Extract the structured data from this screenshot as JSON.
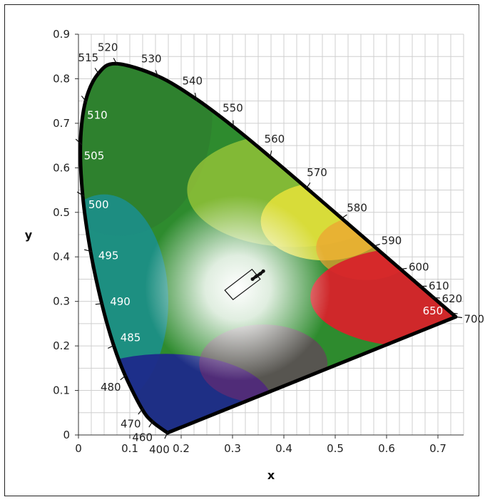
{
  "chart_data": {
    "type": "scatter",
    "xlabel": "x",
    "ylabel": "y",
    "xlim": [
      0,
      0.75
    ],
    "ylim": [
      0,
      0.9
    ],
    "x_ticks": [
      "0",
      "0.1",
      "0.2",
      "0.3",
      "0.4",
      "0.5",
      "0.6",
      "0.7"
    ],
    "y_ticks": [
      "0",
      "0.1",
      "0.2",
      "0.3",
      "0.4",
      "0.5",
      "0.6",
      "0.7",
      "0.8",
      "0.9"
    ],
    "grid": true,
    "spectral_locus": [
      {
        "nm": "400",
        "x": 0.1733,
        "y": 0.0048
      },
      {
        "nm": "460",
        "x": 0.144,
        "y": 0.0297
      },
      {
        "nm": "470",
        "x": 0.1241,
        "y": 0.0578
      },
      {
        "nm": "480",
        "x": 0.0913,
        "y": 0.1327
      },
      {
        "nm": "485",
        "x": 0.0687,
        "y": 0.2007
      },
      {
        "nm": "490",
        "x": 0.0454,
        "y": 0.295
      },
      {
        "nm": "495",
        "x": 0.0235,
        "y": 0.4127
      },
      {
        "nm": "500",
        "x": 0.0082,
        "y": 0.5384
      },
      {
        "nm": "505",
        "x": 0.0039,
        "y": 0.6548
      },
      {
        "nm": "510",
        "x": 0.0139,
        "y": 0.7502
      },
      {
        "nm": "515",
        "x": 0.0389,
        "y": 0.812
      },
      {
        "nm": "520",
        "x": 0.0743,
        "y": 0.8338
      },
      {
        "nm": "530",
        "x": 0.1547,
        "y": 0.8059
      },
      {
        "nm": "540",
        "x": 0.2296,
        "y": 0.7543
      },
      {
        "nm": "550",
        "x": 0.3016,
        "y": 0.6923
      },
      {
        "nm": "560",
        "x": 0.3731,
        "y": 0.6245
      },
      {
        "nm": "570",
        "x": 0.4441,
        "y": 0.5547
      },
      {
        "nm": "580",
        "x": 0.5125,
        "y": 0.4866
      },
      {
        "nm": "590",
        "x": 0.5752,
        "y": 0.4242
      },
      {
        "nm": "600",
        "x": 0.627,
        "y": 0.3725
      },
      {
        "nm": "610",
        "x": 0.6658,
        "y": 0.334
      },
      {
        "nm": "620",
        "x": 0.6915,
        "y": 0.3083
      },
      {
        "nm": "650",
        "x": 0.726,
        "y": 0.274
      },
      {
        "nm": "700",
        "x": 0.7347,
        "y": 0.2653
      }
    ],
    "wavelength_labels": [
      {
        "text": "400",
        "x": 0.1733,
        "y": 0.0048,
        "side": "out"
      },
      {
        "text": "460",
        "x": 0.144,
        "y": 0.0297,
        "side": "out"
      },
      {
        "text": "470",
        "x": 0.1241,
        "y": 0.0578,
        "side": "out"
      },
      {
        "text": "480",
        "x": 0.0913,
        "y": 0.1327,
        "side": "out"
      },
      {
        "text": "485",
        "x": 0.0687,
        "y": 0.2007,
        "side": "in"
      },
      {
        "text": "490",
        "x": 0.0454,
        "y": 0.295,
        "side": "in"
      },
      {
        "text": "495",
        "x": 0.0235,
        "y": 0.4127,
        "side": "in"
      },
      {
        "text": "500",
        "x": 0.0082,
        "y": 0.5384,
        "side": "in"
      },
      {
        "text": "505",
        "x": 0.0039,
        "y": 0.6548,
        "side": "in"
      },
      {
        "text": "510",
        "x": 0.0139,
        "y": 0.7502,
        "side": "in"
      },
      {
        "text": "515",
        "x": 0.0389,
        "y": 0.812,
        "side": "out"
      },
      {
        "text": "520",
        "x": 0.0743,
        "y": 0.8338,
        "side": "out"
      },
      {
        "text": "530",
        "x": 0.1547,
        "y": 0.8059,
        "side": "out"
      },
      {
        "text": "540",
        "x": 0.2296,
        "y": 0.7543,
        "side": "out"
      },
      {
        "text": "550",
        "x": 0.3016,
        "y": 0.6923,
        "side": "out"
      },
      {
        "text": "560",
        "x": 0.3731,
        "y": 0.6245,
        "side": "out"
      },
      {
        "text": "570",
        "x": 0.4441,
        "y": 0.5547,
        "side": "out"
      },
      {
        "text": "580",
        "x": 0.5125,
        "y": 0.4866,
        "side": "out"
      },
      {
        "text": "590",
        "x": 0.5752,
        "y": 0.4242,
        "side": "out"
      },
      {
        "text": "600",
        "x": 0.627,
        "y": 0.3725,
        "side": "out"
      },
      {
        "text": "610",
        "x": 0.6658,
        "y": 0.334,
        "side": "out"
      },
      {
        "text": "620",
        "x": 0.6915,
        "y": 0.3083,
        "side": "out"
      },
      {
        "text": "650",
        "x": 0.726,
        "y": 0.274,
        "side": "in"
      },
      {
        "text": "700",
        "x": 0.7347,
        "y": 0.2653,
        "side": "out"
      }
    ],
    "region_box": [
      [
        0.285,
        0.325
      ],
      [
        0.338,
        0.372
      ],
      [
        0.354,
        0.35
      ],
      [
        0.301,
        0.304
      ]
    ],
    "white_point_curve": [
      {
        "x": 0.339,
        "y": 0.35
      },
      {
        "x": 0.346,
        "y": 0.356
      },
      {
        "x": 0.354,
        "y": 0.362
      },
      {
        "x": 0.36,
        "y": 0.368
      }
    ],
    "colors": {
      "locus": "#000000",
      "grid": "#cfcfcf",
      "white_point": "#ffffff",
      "red": "#d8232a",
      "yellow": "#e8e23a",
      "green": "#2e8b2e",
      "cyan": "#1a8f8f",
      "blue": "#1e2a8a"
    }
  }
}
